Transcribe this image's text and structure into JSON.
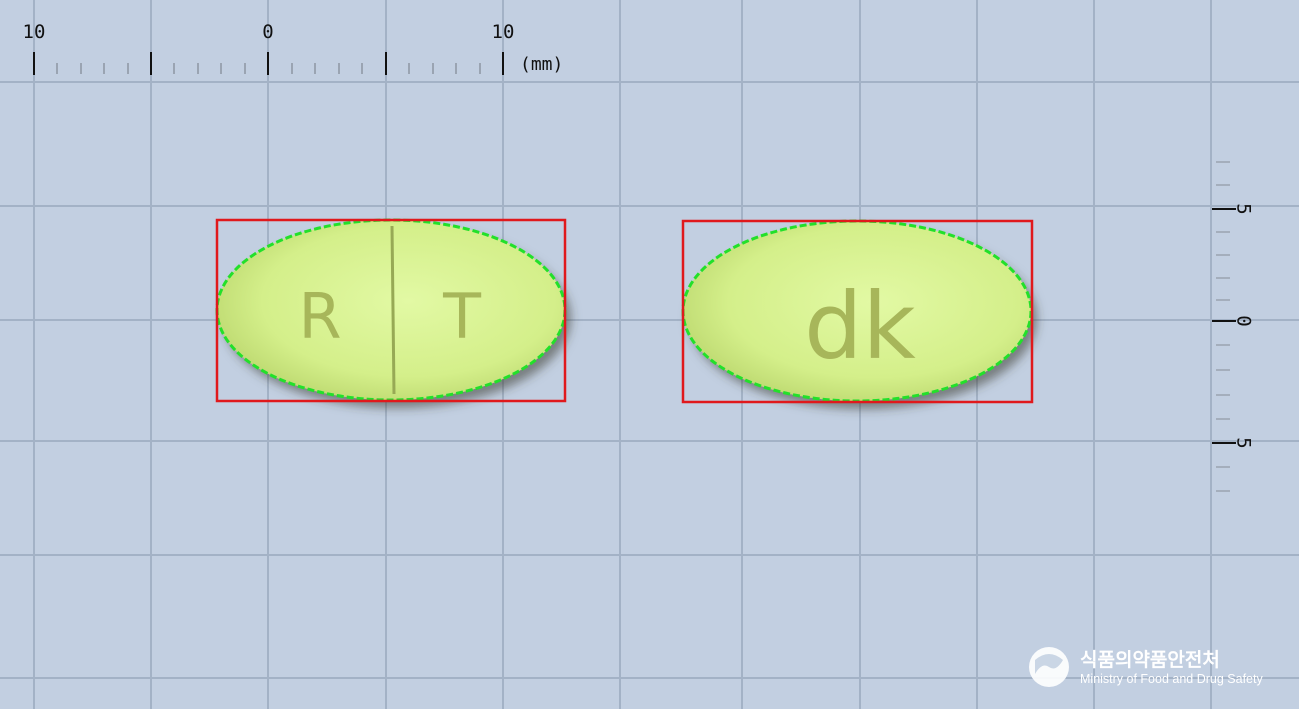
{
  "ruler": {
    "labels": [
      "10",
      "0",
      "10"
    ],
    "unit": "(mm)"
  },
  "vertical_ruler": {
    "labels": [
      "5",
      "0",
      "5"
    ]
  },
  "pills": [
    {
      "name": "front",
      "imprint_left": "R",
      "imprint_right": "T",
      "color": "#d7f38e"
    },
    {
      "name": "back",
      "imprint": "dk",
      "color": "#d7f38e"
    }
  ],
  "colors": {
    "background": "#c2cfe1",
    "bounding_box": "#e0191c",
    "contour": "#22e02a",
    "grid": "#a3b2c6"
  },
  "logo": {
    "korean": "식품의약품안전처",
    "english": "Ministry of Food and Drug Safety"
  }
}
